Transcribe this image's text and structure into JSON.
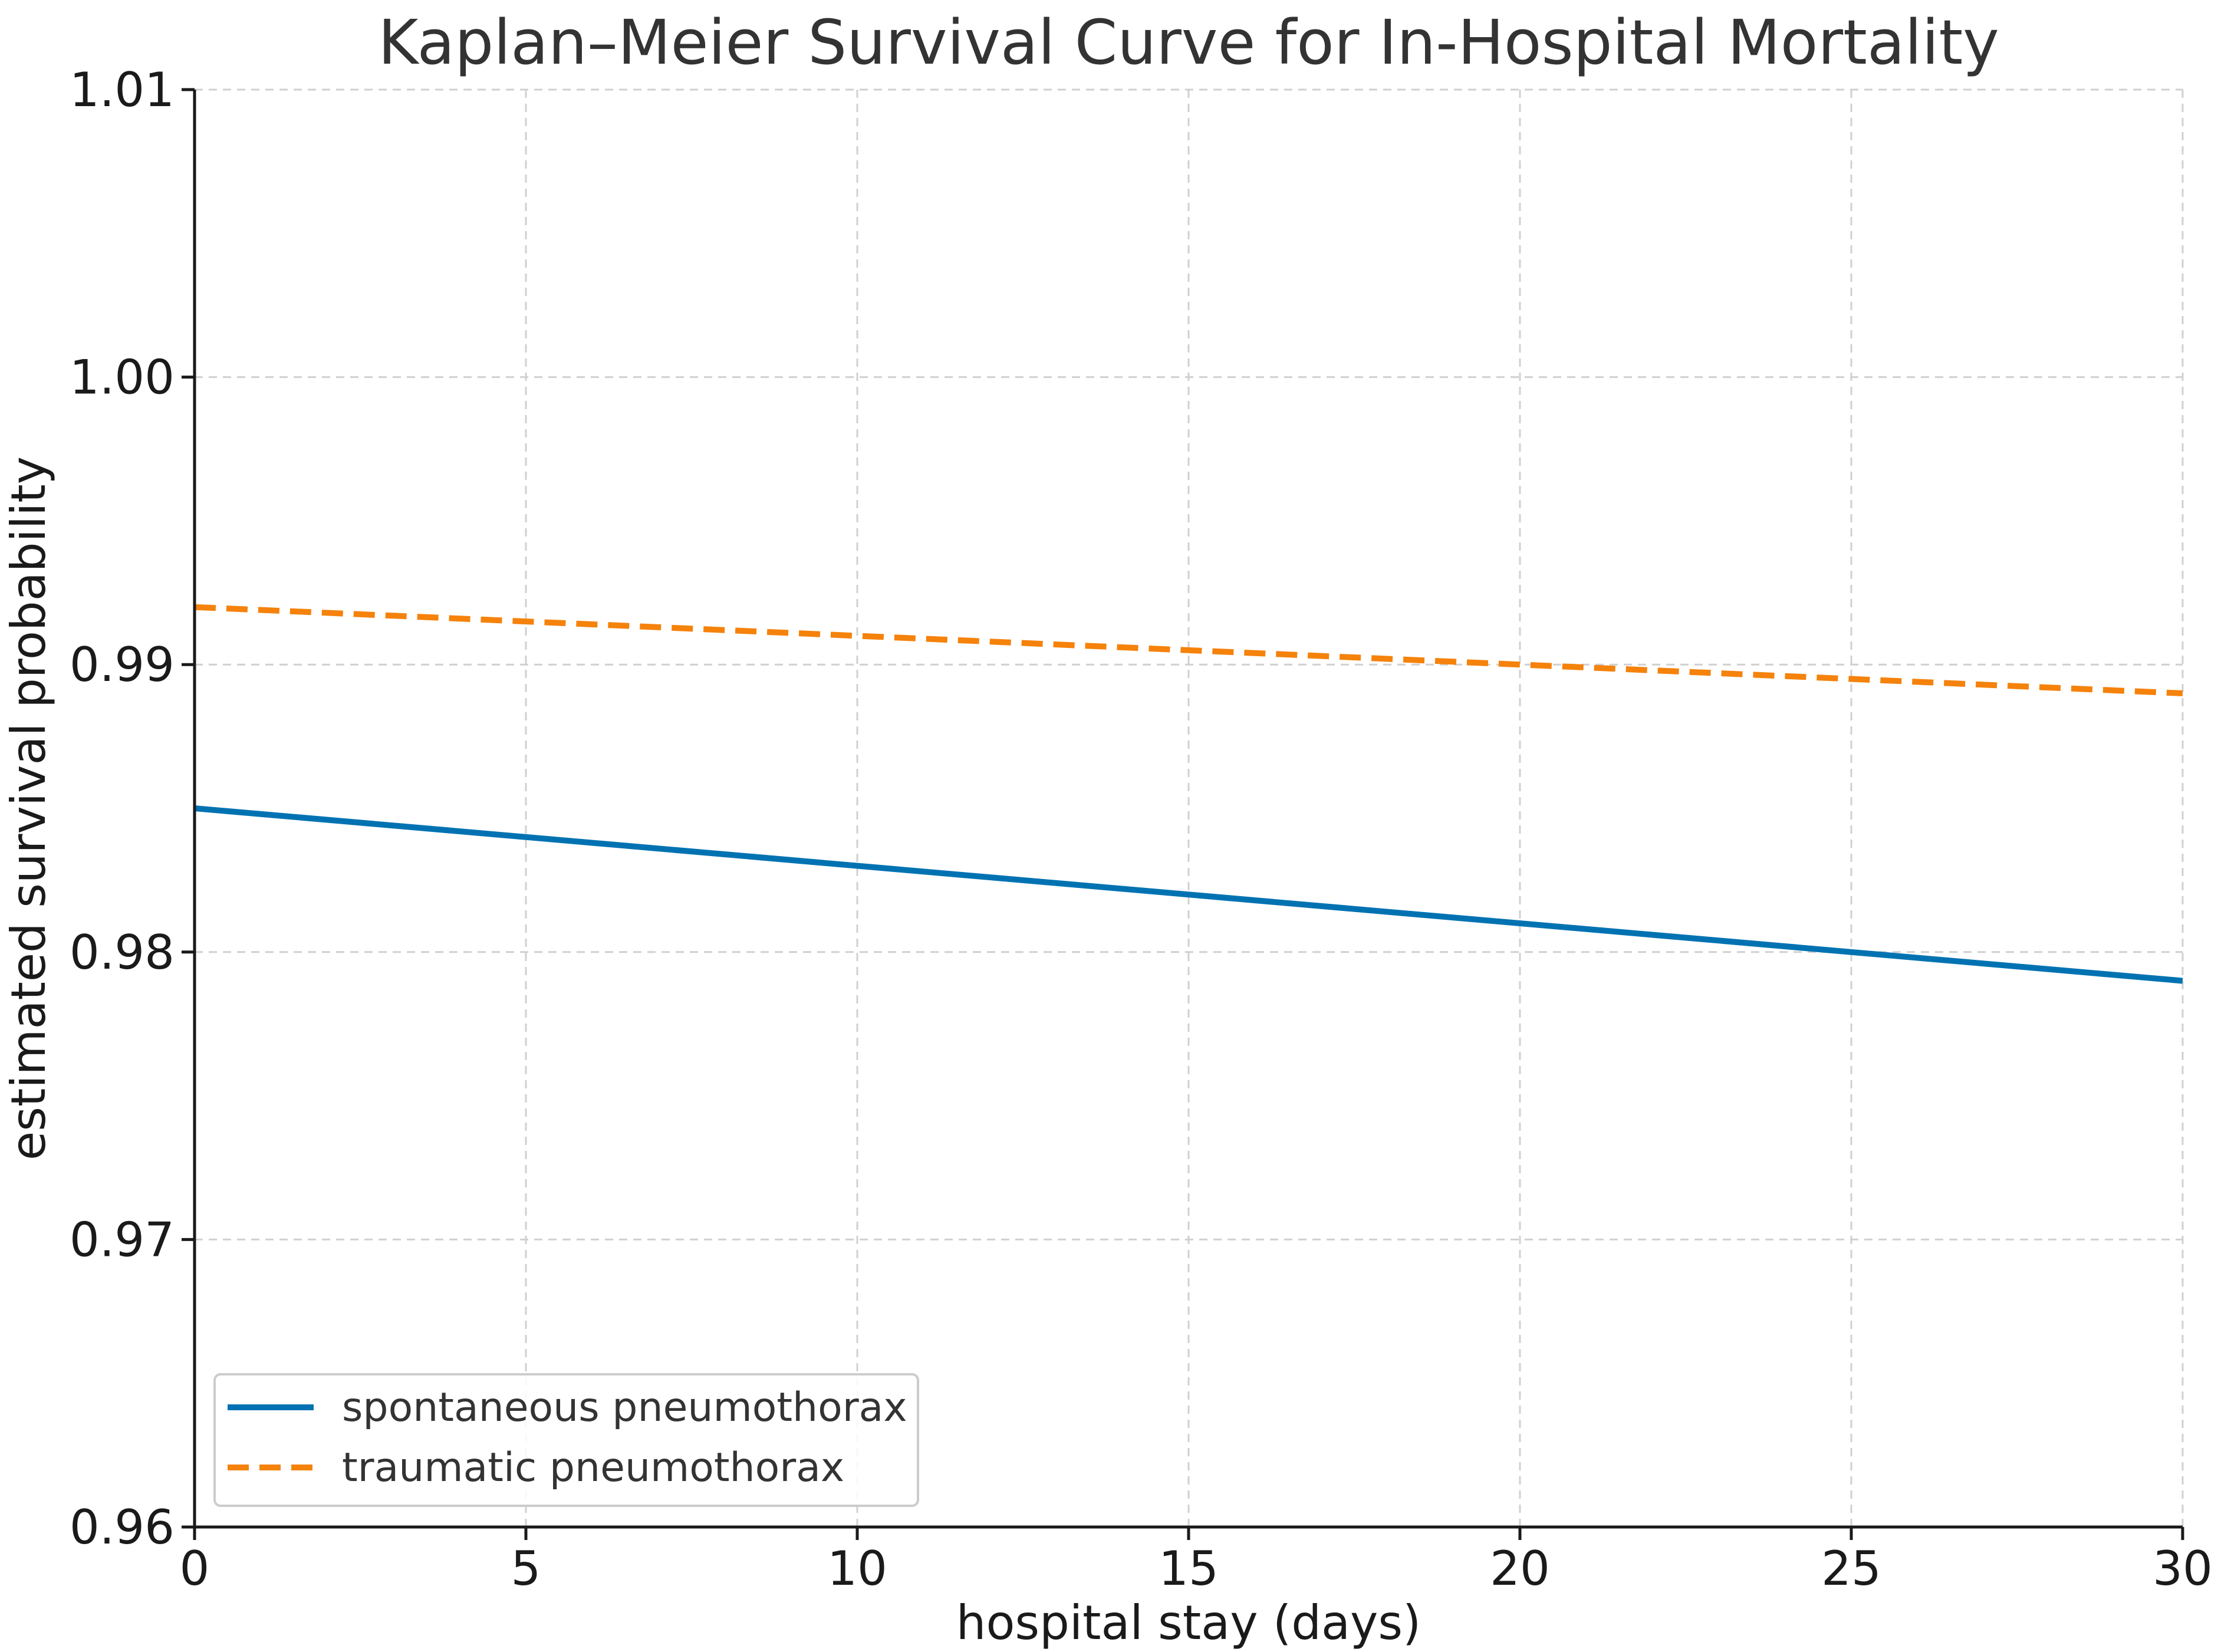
{
  "chart_data": {
    "type": "line",
    "title": "Kaplan–Meier Survival Curve for In-Hospital Mortality",
    "xlabel": "hospital stay (days)",
    "ylabel": "estimated survival probability",
    "xlim": [
      0,
      30
    ],
    "ylim": [
      0.96,
      1.01
    ],
    "xticks": [
      0,
      5,
      10,
      15,
      20,
      25,
      30
    ],
    "yticks": [
      0.96,
      0.97,
      0.98,
      0.99,
      1.0,
      1.01
    ],
    "xtick_labels": [
      "0",
      "5",
      "10",
      "15",
      "20",
      "25",
      "30"
    ],
    "ytick_labels": [
      "0.96",
      "0.97",
      "0.98",
      "0.99",
      "1.00",
      "1.01"
    ],
    "grid": true,
    "legend_position": "lower-left",
    "series": [
      {
        "name": "spontaneous pneumothorax",
        "color": "#0072B2",
        "style": "solid",
        "x": [
          0,
          30
        ],
        "y": [
          0.985,
          0.979
        ]
      },
      {
        "name": "traumatic pneumothorax",
        "color": "#F5820B",
        "style": "dashed",
        "x": [
          0,
          30
        ],
        "y": [
          0.992,
          0.989
        ]
      }
    ]
  }
}
